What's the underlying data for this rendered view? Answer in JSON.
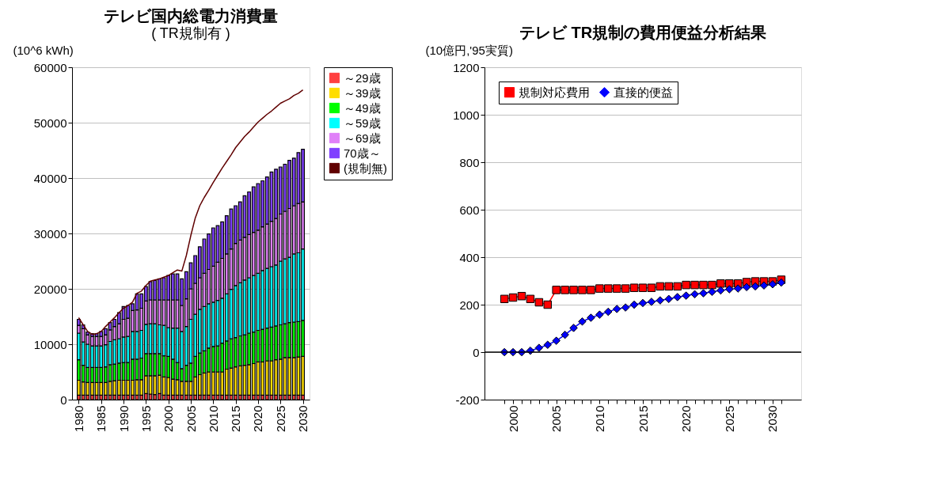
{
  "chart_data": [
    {
      "type": "bar",
      "title": "テレビ国内総電力消費量",
      "subtitle": "( TR規制有 )",
      "ylabel": "(10^6 kWh)",
      "stacked": true,
      "grid": "y",
      "legend": "right",
      "x": [
        1980,
        1981,
        1982,
        1983,
        1984,
        1985,
        1986,
        1987,
        1988,
        1989,
        1990,
        1991,
        1992,
        1993,
        1994,
        1995,
        1996,
        1997,
        1998,
        1999,
        2000,
        2001,
        2002,
        2003,
        2004,
        2005,
        2006,
        2007,
        2008,
        2009,
        2010,
        2011,
        2012,
        2013,
        2014,
        2015,
        2016,
        2017,
        2018,
        2019,
        2020,
        2021,
        2022,
        2023,
        2024,
        2025,
        2026,
        2027,
        2028,
        2029,
        2030
      ],
      "xlim": [
        1979.4,
        2030.6
      ],
      "xticks": [
        1980,
        1985,
        1990,
        1995,
        2000,
        2005,
        2010,
        2015,
        2020,
        2025,
        2030
      ],
      "ylim": [
        0,
        60000
      ],
      "yticks": [
        0,
        10000,
        20000,
        30000,
        40000,
        50000,
        60000
      ],
      "series": [
        {
          "name": "～29歳",
          "color": "#ff4040",
          "values": [
            800,
            800,
            800,
            800,
            800,
            800,
            800,
            800,
            800,
            800,
            800,
            800,
            800,
            800,
            800,
            1100,
            1000,
            900,
            1100,
            800,
            800,
            800,
            800,
            800,
            800,
            800,
            800,
            800,
            800,
            800,
            800,
            800,
            800,
            800,
            800,
            800,
            800,
            800,
            800,
            800,
            800,
            800,
            800,
            800,
            800,
            800,
            800,
            800,
            800,
            800,
            800
          ]
        },
        {
          "name": "～39歳",
          "color": "#ffdd00",
          "values": [
            2700,
            2400,
            2300,
            2300,
            2300,
            2300,
            2300,
            2500,
            2600,
            2700,
            2700,
            2700,
            2700,
            2800,
            2800,
            3200,
            3300,
            3400,
            3300,
            3300,
            3200,
            2900,
            2800,
            2500,
            2500,
            2500,
            3300,
            3700,
            4000,
            4200,
            4200,
            4200,
            4200,
            4700,
            4900,
            5100,
            5300,
            5400,
            5500,
            5700,
            6000,
            6000,
            6200,
            6200,
            6400,
            6500,
            6800,
            6800,
            6800,
            6900,
            7000
          ]
        },
        {
          "name": "～49歳",
          "color": "#00ff00",
          "values": [
            3700,
            3000,
            2700,
            2700,
            2700,
            2700,
            2800,
            3000,
            3000,
            3100,
            3200,
            3200,
            3800,
            3700,
            3900,
            4000,
            4000,
            4000,
            3900,
            3800,
            3800,
            3600,
            3100,
            2300,
            2900,
            3300,
            3700,
            3900,
            4000,
            4300,
            4600,
            4700,
            5200,
            5100,
            5300,
            5300,
            5400,
            5500,
            5700,
            5700,
            5700,
            5900,
            5900,
            6100,
            6100,
            6200,
            6100,
            6300,
            6400,
            6400,
            6500
          ]
        },
        {
          "name": "～59歳",
          "color": "#00ffff",
          "values": [
            4800,
            4200,
            4200,
            3900,
            3900,
            3900,
            4000,
            4200,
            4400,
            4400,
            4600,
            4700,
            5000,
            5000,
            5000,
            5300,
            5400,
            5400,
            5200,
            5500,
            5200,
            5600,
            6200,
            6700,
            7000,
            7900,
            7600,
            7900,
            8000,
            8000,
            8000,
            8200,
            8100,
            8500,
            8900,
            9400,
            9600,
            9900,
            10000,
            10200,
            10300,
            10600,
            10800,
            10900,
            11000,
            11500,
            11700,
            11800,
            12300,
            12400,
            12900
          ]
        },
        {
          "name": "～69歳",
          "color": "#e080f8",
          "values": [
            1400,
            2400,
            1700,
            1700,
            1700,
            1700,
            1800,
            2100,
            2400,
            2700,
            3200,
            3300,
            3800,
            3900,
            4000,
            4200,
            4300,
            4300,
            4500,
            4600,
            5000,
            5100,
            5100,
            4700,
            5000,
            5500,
            5600,
            5700,
            6000,
            6200,
            6500,
            6900,
            7200,
            7200,
            7300,
            7600,
            7700,
            7700,
            7800,
            7800,
            7800,
            7900,
            8000,
            8200,
            8400,
            8500,
            8600,
            8800,
            8700,
            8900,
            8500
          ]
        },
        {
          "name": "70歳～",
          "color": "#8040ff",
          "values": [
            1100,
            700,
            500,
            500,
            500,
            900,
            1100,
            1300,
            1300,
            2000,
            2300,
            2300,
            1200,
            2900,
            2600,
            2600,
            3300,
            3500,
            3800,
            4000,
            4400,
            4700,
            4700,
            4800,
            4900,
            4700,
            5000,
            5600,
            6200,
            6400,
            6900,
            6600,
            6600,
            6900,
            7200,
            6800,
            6900,
            7500,
            7700,
            8200,
            8400,
            8300,
            8500,
            8900,
            8900,
            8500,
            8500,
            8700,
            8600,
            9200,
            9500
          ]
        },
        {
          "name": "(規制無)",
          "type": "line",
          "color": "#600000",
          "values": [
            14800,
            13500,
            12300,
            11800,
            11900,
            12300,
            13200,
            14000,
            14800,
            15700,
            16500,
            17000,
            17600,
            19200,
            19600,
            20600,
            21400,
            21600,
            21800,
            22100,
            22400,
            22900,
            23400,
            23200,
            26000,
            29600,
            32800,
            35000,
            36500,
            37800,
            39200,
            40500,
            41800,
            43000,
            44200,
            45500,
            46500,
            47500,
            48300,
            49200,
            50100,
            50800,
            51500,
            52100,
            52800,
            53500,
            53900,
            54300,
            54900,
            55300,
            55900
          ]
        }
      ]
    },
    {
      "type": "line",
      "title": "テレビ TR規制の費用便益分析結果",
      "ylabel": "(10億円,'95実質)",
      "grid": "y",
      "legend": "top left",
      "x": [
        1999,
        2000,
        2001,
        2002,
        2003,
        2004,
        2005,
        2006,
        2007,
        2008,
        2009,
        2010,
        2011,
        2012,
        2013,
        2014,
        2015,
        2016,
        2017,
        2018,
        2019,
        2020,
        2021,
        2022,
        2023,
        2024,
        2025,
        2026,
        2027,
        2028,
        2029,
        2030,
        2031
      ],
      "xlim": [
        1996.7,
        2033.3
      ],
      "xticks": [
        {
          "value": 1999,
          "label": null
        },
        2000,
        {
          "value": 2001,
          "label": null
        },
        {
          "value": 2002,
          "label": null
        },
        {
          "value": 2003,
          "label": null
        },
        {
          "value": 2004,
          "label": null
        },
        2005,
        {
          "value": 2006,
          "label": null
        },
        {
          "value": 2007,
          "label": null
        },
        {
          "value": 2008,
          "label": null
        },
        {
          "value": 2009,
          "label": null
        },
        2010,
        {
          "value": 2011,
          "label": null
        },
        {
          "value": 2012,
          "label": null
        },
        {
          "value": 2013,
          "label": null
        },
        {
          "value": 2014,
          "label": null
        },
        2015,
        {
          "value": 2016,
          "label": null
        },
        {
          "value": 2017,
          "label": null
        },
        {
          "value": 2018,
          "label": null
        },
        {
          "value": 2019,
          "label": null
        },
        2020,
        {
          "value": 2021,
          "label": null
        },
        {
          "value": 2022,
          "label": null
        },
        {
          "value": 2023,
          "label": null
        },
        {
          "value": 2024,
          "label": null
        },
        2025,
        {
          "value": 2026,
          "label": null
        },
        {
          "value": 2027,
          "label": null
        },
        {
          "value": 2028,
          "label": null
        },
        {
          "value": 2029,
          "label": null
        },
        2030,
        {
          "value": 2031,
          "label": null
        }
      ],
      "ylim": [
        -200,
        1200
      ],
      "yticks": [
        -200,
        0,
        200,
        400,
        600,
        800,
        1000,
        1200
      ],
      "ref_lines": [
        {
          "axis": "y",
          "value": 0,
          "color": "#000000"
        }
      ],
      "series": [
        {
          "name": "規制対応費用",
          "color": "#ff0000",
          "marker": "square",
          "values": [
            224,
            230,
            236,
            224,
            210,
            200,
            262,
            262,
            262,
            262,
            262,
            268,
            268,
            268,
            268,
            271,
            271,
            271,
            277,
            277,
            277,
            283,
            283,
            283,
            283,
            289,
            289,
            289,
            295,
            298,
            298,
            298,
            305
          ]
        },
        {
          "name": "直接的便益",
          "color": "#0000ff",
          "marker": "diamond",
          "values": [
            0,
            0,
            0,
            6,
            18,
            31,
            48,
            73,
            102,
            129,
            145,
            158,
            170,
            182,
            188,
            200,
            207,
            212,
            218,
            224,
            232,
            238,
            244,
            248,
            254,
            260,
            265,
            268,
            274,
            277,
            281,
            286,
            293
          ]
        }
      ]
    }
  ]
}
